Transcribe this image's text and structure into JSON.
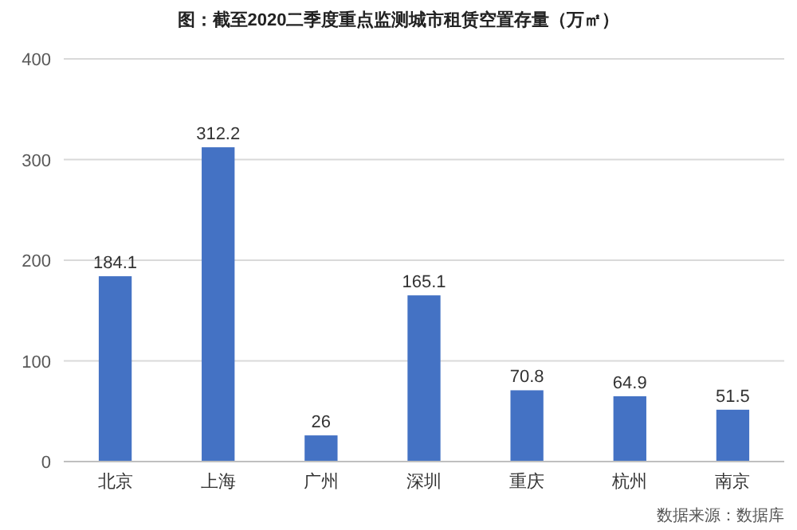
{
  "chart_data": {
    "type": "bar",
    "title": "图：截至2020二季度重点监测城市租赁空置存量（万㎡）",
    "categories": [
      "北京",
      "上海",
      "广州",
      "深圳",
      "重庆",
      "杭州",
      "南京"
    ],
    "values": [
      184.1,
      312.2,
      26,
      165.1,
      70.8,
      64.9,
      51.5
    ],
    "color": "#4472c4",
    "ylim": [
      0,
      400
    ],
    "yticks": [
      0,
      100,
      200,
      300,
      400
    ],
    "grid": "y",
    "data_labels": true,
    "annotations": [
      "数据来源：数据库"
    ]
  }
}
